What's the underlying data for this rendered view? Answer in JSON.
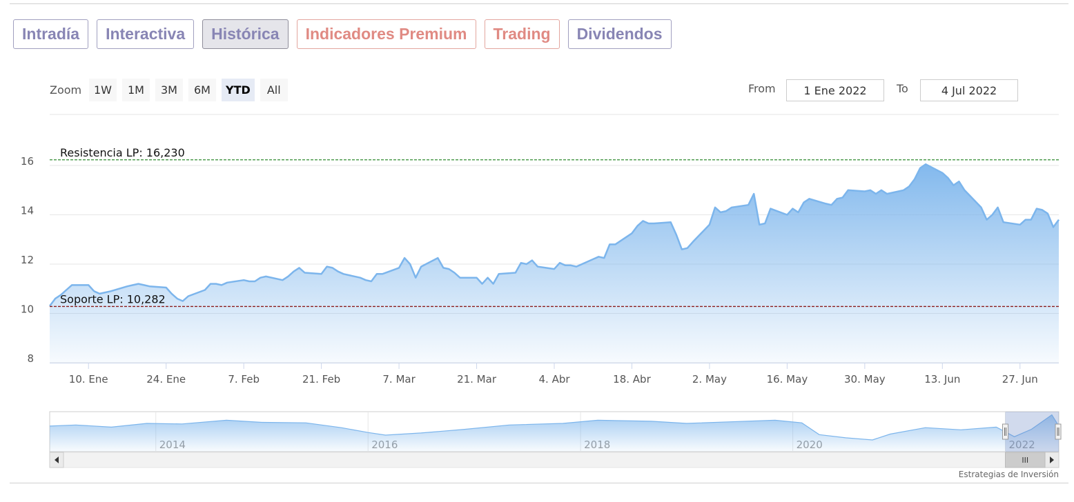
{
  "tabs": [
    {
      "label": "Intradía",
      "style": "normal"
    },
    {
      "label": "Interactiva",
      "style": "normal"
    },
    {
      "label": "Histórica",
      "style": "active"
    },
    {
      "label": "Indicadores Premium",
      "style": "premium"
    },
    {
      "label": "Trading",
      "style": "premium"
    },
    {
      "label": "Dividendos",
      "style": "normal"
    }
  ],
  "zoom": {
    "label": "Zoom",
    "buttons": [
      "1W",
      "1M",
      "3M",
      "6M",
      "YTD",
      "All"
    ],
    "active": "YTD"
  },
  "range": {
    "from_label": "From",
    "from_value": "1 Ene 2022",
    "to_label": "To",
    "to_value": "4 Jul 2022"
  },
  "credit": "Estrategias de Inversión",
  "colors": {
    "line": "#7cb5ec",
    "resistance": "#2e8b2e",
    "support": "#8b1a1a",
    "tab_normal": "#8885b4",
    "tab_premium": "#e08a83"
  },
  "chart_data": {
    "type": "area",
    "x_start": "2022-01-03",
    "x_ticks": [
      "10. Ene",
      "24. Ene",
      "7. Feb",
      "21. Feb",
      "7. Mar",
      "21. Mar",
      "4. Abr",
      "18. Abr",
      "2. May",
      "16. May",
      "30. May",
      "13. Jun",
      "27. Jun"
    ],
    "x_tick_dates": [
      "2022-01-10",
      "2022-01-24",
      "2022-02-07",
      "2022-02-21",
      "2022-03-07",
      "2022-03-21",
      "2022-04-04",
      "2022-04-18",
      "2022-05-02",
      "2022-05-16",
      "2022-05-30",
      "2022-06-13",
      "2022-06-27"
    ],
    "y_ticks": [
      8,
      10,
      12,
      14,
      16
    ],
    "ylim": [
      8,
      16.6
    ],
    "xlim": [
      "2022-01-03",
      "2022-07-04"
    ],
    "grid": true,
    "series": [
      {
        "points": [
          [
            "2022-01-03",
            10.3
          ],
          [
            "2022-01-04",
            10.6
          ],
          [
            "2022-01-05",
            10.75
          ],
          [
            "2022-01-06",
            10.95
          ],
          [
            "2022-01-07",
            11.15
          ],
          [
            "2022-01-10",
            11.15
          ],
          [
            "2022-01-11",
            10.9
          ],
          [
            "2022-01-12",
            10.8
          ],
          [
            "2022-01-13",
            10.85
          ],
          [
            "2022-01-14",
            10.9
          ],
          [
            "2022-01-17",
            11.1
          ],
          [
            "2022-01-18",
            11.15
          ],
          [
            "2022-01-19",
            11.2
          ],
          [
            "2022-01-20",
            11.15
          ],
          [
            "2022-01-21",
            11.1
          ],
          [
            "2022-01-24",
            11.05
          ],
          [
            "2022-01-25",
            10.8
          ],
          [
            "2022-01-26",
            10.6
          ],
          [
            "2022-01-27",
            10.5
          ],
          [
            "2022-01-28",
            10.7
          ],
          [
            "2022-01-31",
            10.95
          ],
          [
            "2022-02-01",
            11.2
          ],
          [
            "2022-02-02",
            11.2
          ],
          [
            "2022-02-03",
            11.15
          ],
          [
            "2022-02-04",
            11.25
          ],
          [
            "2022-02-07",
            11.35
          ],
          [
            "2022-02-08",
            11.3
          ],
          [
            "2022-02-09",
            11.3
          ],
          [
            "2022-02-10",
            11.45
          ],
          [
            "2022-02-11",
            11.5
          ],
          [
            "2022-02-14",
            11.35
          ],
          [
            "2022-02-15",
            11.5
          ],
          [
            "2022-02-16",
            11.7
          ],
          [
            "2022-02-17",
            11.85
          ],
          [
            "2022-02-18",
            11.65
          ],
          [
            "2022-02-21",
            11.6
          ],
          [
            "2022-02-22",
            11.9
          ],
          [
            "2022-02-23",
            11.85
          ],
          [
            "2022-02-24",
            11.7
          ],
          [
            "2022-02-25",
            11.6
          ],
          [
            "2022-02-28",
            11.45
          ],
          [
            "2022-03-01",
            11.35
          ],
          [
            "2022-03-02",
            11.3
          ],
          [
            "2022-03-03",
            11.6
          ],
          [
            "2022-03-04",
            11.6
          ],
          [
            "2022-03-07",
            11.85
          ],
          [
            "2022-03-08",
            12.25
          ],
          [
            "2022-03-09",
            12.0
          ],
          [
            "2022-03-10",
            11.45
          ],
          [
            "2022-03-11",
            11.9
          ],
          [
            "2022-03-14",
            12.25
          ],
          [
            "2022-03-15",
            11.85
          ],
          [
            "2022-03-16",
            11.8
          ],
          [
            "2022-03-17",
            11.65
          ],
          [
            "2022-03-18",
            11.45
          ],
          [
            "2022-03-21",
            11.45
          ],
          [
            "2022-03-22",
            11.2
          ],
          [
            "2022-03-23",
            11.45
          ],
          [
            "2022-03-24",
            11.2
          ],
          [
            "2022-03-25",
            11.6
          ],
          [
            "2022-03-28",
            11.65
          ],
          [
            "2022-03-29",
            12.05
          ],
          [
            "2022-03-30",
            12.0
          ],
          [
            "2022-03-31",
            12.15
          ],
          [
            "2022-04-01",
            11.9
          ],
          [
            "2022-04-04",
            11.8
          ],
          [
            "2022-04-05",
            12.05
          ],
          [
            "2022-04-06",
            11.95
          ],
          [
            "2022-04-07",
            11.95
          ],
          [
            "2022-04-08",
            11.9
          ],
          [
            "2022-04-11",
            12.2
          ],
          [
            "2022-04-12",
            12.3
          ],
          [
            "2022-04-13",
            12.25
          ],
          [
            "2022-04-14",
            12.8
          ],
          [
            "2022-04-15",
            12.8
          ],
          [
            "2022-04-18",
            13.25
          ],
          [
            "2022-04-19",
            13.55
          ],
          [
            "2022-04-20",
            13.75
          ],
          [
            "2022-04-21",
            13.65
          ],
          [
            "2022-04-22",
            13.65
          ],
          [
            "2022-04-25",
            13.7
          ],
          [
            "2022-04-26",
            13.2
          ],
          [
            "2022-04-27",
            12.6
          ],
          [
            "2022-04-28",
            12.65
          ],
          [
            "2022-04-29",
            12.9
          ],
          [
            "2022-05-02",
            13.6
          ],
          [
            "2022-05-03",
            14.3
          ],
          [
            "2022-05-04",
            14.1
          ],
          [
            "2022-05-05",
            14.15
          ],
          [
            "2022-05-06",
            14.3
          ],
          [
            "2022-05-09",
            14.4
          ],
          [
            "2022-05-10",
            14.85
          ],
          [
            "2022-05-11",
            13.6
          ],
          [
            "2022-05-12",
            13.65
          ],
          [
            "2022-05-13",
            14.25
          ],
          [
            "2022-05-16",
            14.0
          ],
          [
            "2022-05-17",
            14.25
          ],
          [
            "2022-05-18",
            14.1
          ],
          [
            "2022-05-19",
            14.5
          ],
          [
            "2022-05-20",
            14.65
          ],
          [
            "2022-05-23",
            14.45
          ],
          [
            "2022-05-24",
            14.4
          ],
          [
            "2022-05-25",
            14.65
          ],
          [
            "2022-05-26",
            14.7
          ],
          [
            "2022-05-27",
            15.0
          ],
          [
            "2022-05-30",
            14.95
          ],
          [
            "2022-05-31",
            15.0
          ],
          [
            "2022-06-01",
            14.85
          ],
          [
            "2022-06-02",
            15.0
          ],
          [
            "2022-06-03",
            14.85
          ],
          [
            "2022-06-06",
            15.0
          ],
          [
            "2022-06-07",
            15.15
          ],
          [
            "2022-06-08",
            15.45
          ],
          [
            "2022-06-09",
            15.9
          ],
          [
            "2022-06-10",
            16.05
          ],
          [
            "2022-06-13",
            15.7
          ],
          [
            "2022-06-14",
            15.5
          ],
          [
            "2022-06-15",
            15.2
          ],
          [
            "2022-06-16",
            15.35
          ],
          [
            "2022-06-17",
            15.0
          ],
          [
            "2022-06-20",
            14.3
          ],
          [
            "2022-06-21",
            13.8
          ],
          [
            "2022-06-22",
            14.0
          ],
          [
            "2022-06-23",
            14.3
          ],
          [
            "2022-06-24",
            13.7
          ],
          [
            "2022-06-27",
            13.6
          ],
          [
            "2022-06-28",
            13.8
          ],
          [
            "2022-06-29",
            13.8
          ],
          [
            "2022-06-30",
            14.25
          ],
          [
            "2022-07-01",
            14.2
          ],
          [
            "2022-07-02",
            14.05
          ],
          [
            "2022-07-03",
            13.5
          ],
          [
            "2022-07-04",
            13.8
          ]
        ]
      }
    ],
    "annotations": [
      {
        "label": "Resistencia LP: 16,230",
        "value": 16.23,
        "style": "dashed-green"
      },
      {
        "label": "Soporte LP: 10,282",
        "value": 10.282,
        "style": "dashed-red"
      }
    ],
    "navigator": {
      "year_labels": [
        "2014",
        "2016",
        "2018",
        "2020",
        "2022"
      ],
      "year_dates": [
        "2014-01-01",
        "2016-01-01",
        "2018-01-01",
        "2020-01-01",
        "2022-01-01"
      ],
      "start": "2013-01-01",
      "end": "2022-07-04",
      "selected_start": "2022-01-01",
      "selected_end": "2022-07-04",
      "scrollbar_grip": "III",
      "series": [
        [
          "2013-01-01",
          13.8
        ],
        [
          "2013-04-01",
          14.0
        ],
        [
          "2013-08-01",
          13.6
        ],
        [
          "2013-12-01",
          14.3
        ],
        [
          "2014-04-01",
          14.2
        ],
        [
          "2014-09-01",
          14.9
        ],
        [
          "2015-01-01",
          14.5
        ],
        [
          "2015-06-01",
          14.4
        ],
        [
          "2015-10-01",
          13.5
        ],
        [
          "2016-01-01",
          12.6
        ],
        [
          "2016-03-01",
          12.1
        ],
        [
          "2016-07-01",
          12.5
        ],
        [
          "2016-12-01",
          13.2
        ],
        [
          "2017-05-01",
          14.0
        ],
        [
          "2017-11-01",
          14.3
        ],
        [
          "2018-03-01",
          14.9
        ],
        [
          "2018-09-01",
          14.7
        ],
        [
          "2019-01-01",
          14.3
        ],
        [
          "2019-06-01",
          14.6
        ],
        [
          "2019-11-01",
          14.9
        ],
        [
          "2020-02-01",
          14.4
        ],
        [
          "2020-04-01",
          12.2
        ],
        [
          "2020-07-01",
          11.6
        ],
        [
          "2020-10-01",
          11.2
        ],
        [
          "2020-12-01",
          12.3
        ],
        [
          "2021-04-01",
          13.5
        ],
        [
          "2021-08-01",
          13.1
        ],
        [
          "2021-12-01",
          13.6
        ],
        [
          "2022-02-01",
          11.8
        ],
        [
          "2022-04-01",
          13.2
        ],
        [
          "2022-06-10",
          15.9
        ],
        [
          "2022-07-04",
          13.8
        ]
      ]
    }
  }
}
